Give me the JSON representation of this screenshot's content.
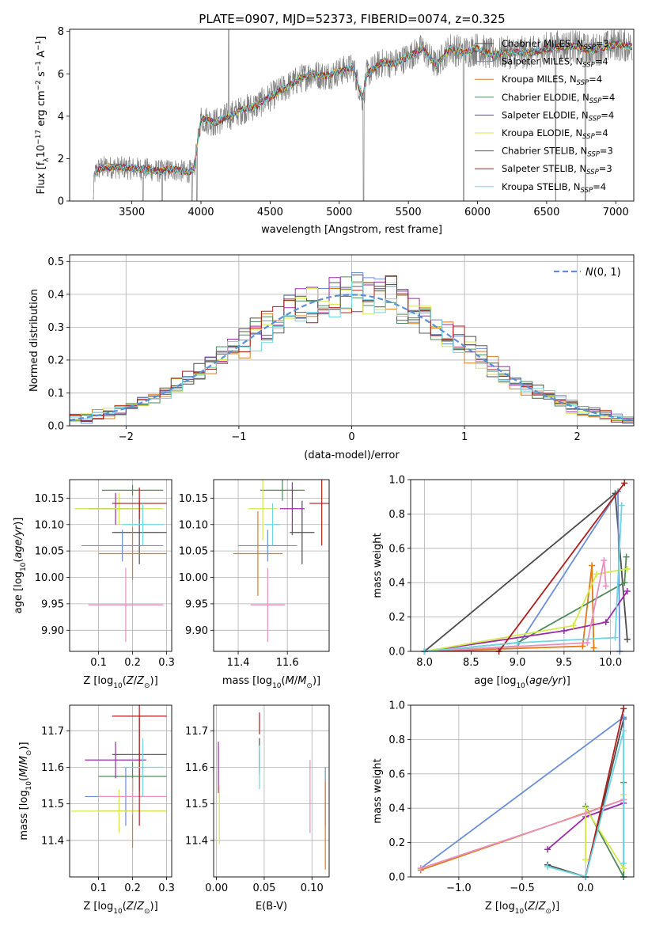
{
  "title": "PLATE=0907, MJD=52373, FIBERID=0074, z=0.325",
  "series": [
    {
      "key": "chab_miles",
      "label": "Chabrier MILES, N",
      "sub": "SSP",
      "nssp": "=3",
      "color": "#4d4d4d"
    },
    {
      "key": "salp_miles",
      "label": "Salpeter MILES, N",
      "sub": "SSP",
      "nssp": "=4",
      "color": "#6b8fd4"
    },
    {
      "key": "krou_miles",
      "label": "Kroupa MILES, N",
      "sub": "SSP",
      "nssp": "=4",
      "color": "#e07b1a"
    },
    {
      "key": "chab_elodie",
      "label": "Chabrier ELODIE, N",
      "sub": "SSP",
      "nssp": "=4",
      "color": "#4e8a5a"
    },
    {
      "key": "salp_elodie",
      "label": "Salpeter ELODIE, N",
      "sub": "SSP",
      "nssp": "=4",
      "color": "#9b2aa8"
    },
    {
      "key": "krou_elodie",
      "label": "Kroupa ELODIE, N",
      "sub": "SSP",
      "nssp": "=4",
      "color": "#d4e84a"
    },
    {
      "key": "chab_stelib",
      "label": "Chabrier STELIB, N",
      "sub": "SSP",
      "nssp": "=3",
      "color": "#5a5a5a"
    },
    {
      "key": "salp_stelib",
      "label": "Salpeter STELIB, N",
      "sub": "SSP",
      "nssp": "=3",
      "color": "#b01d1d"
    },
    {
      "key": "krou_stelib",
      "label": "Kroupa STELIB, N",
      "sub": "SSP",
      "nssp": "=4",
      "color": "#6fd6e0"
    }
  ],
  "chart_data": [
    {
      "id": "spectrum",
      "type": "line",
      "xlabel": "wavelength [Angstrom, rest frame]",
      "ylabel": "Flux [f_λ 10^-17 erg cm^-2 s^-1 A^-1]",
      "xlim": [
        3050,
        7130
      ],
      "ylim": [
        0,
        8.1
      ],
      "xticks": [
        3500,
        4000,
        4500,
        5000,
        5500,
        6000,
        6500,
        7000
      ],
      "yticks": [
        0,
        2,
        4,
        6,
        8
      ],
      "data_range": [
        3220,
        7120
      ],
      "data_color": "#808080",
      "model_anchor_x": [
        3220,
        3230,
        3250,
        3300,
        3500,
        3600,
        3700,
        3800,
        3900,
        3950,
        4000,
        4100,
        4200,
        4300,
        4400,
        4500,
        4600,
        4700,
        4800,
        4900,
        5000,
        5100,
        5170,
        5200,
        5300,
        5400,
        5500,
        5600,
        5700,
        5800,
        5900,
        6000,
        6100,
        6200,
        6300,
        6400,
        6500,
        6600,
        6700,
        6800,
        6900,
        7000,
        7100
      ],
      "model_anchor_y": [
        0.0,
        1.2,
        1.5,
        1.6,
        1.55,
        1.5,
        1.4,
        1.5,
        1.35,
        1.5,
        3.9,
        3.7,
        4.0,
        4.3,
        4.5,
        4.9,
        5.3,
        5.7,
        6.0,
        5.9,
        6.1,
        6.3,
        4.8,
        6.0,
        6.5,
        6.5,
        6.8,
        7.2,
        6.4,
        7.2,
        7.0,
        7.2,
        6.9,
        7.0,
        7.0,
        7.0,
        7.2,
        7.3,
        7.3,
        7.1,
        7.2,
        7.4,
        7.3
      ],
      "dips_x": [
        3580,
        3720,
        3935,
        3970,
        4200,
        5175,
        5900,
        6565,
        6780
      ],
      "legend_position": "upper right"
    },
    {
      "id": "residuals",
      "type": "histogram",
      "xlabel": "(data-model)/error",
      "ylabel": "Normed distribution",
      "xlim": [
        -2.5,
        2.5
      ],
      "ylim": [
        0,
        0.52
      ],
      "xticks": [
        -2,
        -1,
        0,
        1,
        2
      ],
      "yticks": [
        0.0,
        0.1,
        0.2,
        0.3,
        0.4,
        0.5
      ],
      "bin_width": 0.1,
      "grid": true,
      "reference_curve": {
        "name": "N(0,1)",
        "mean": 0,
        "sigma": 1,
        "color": "#5b8fd9",
        "style": "dashed"
      },
      "legend_position": "upper right"
    },
    {
      "id": "age_vs_z",
      "type": "errorbar",
      "xlabel": "Z [log10(Z/Z_sun)]",
      "ylabel": "age  [log10(age/yr)]",
      "xlim": [
        0.015,
        0.315
      ],
      "ylim": [
        9.86,
        10.185
      ],
      "xticks": [
        0.1,
        0.2,
        0.3
      ],
      "yticks": [
        9.9,
        9.95,
        10.0,
        10.05,
        10.1,
        10.15
      ],
      "points": [
        {
          "color": "#4d4d4d",
          "x": 0.22,
          "xerr": 0.08,
          "y": 10.085,
          "yerr": 0.06
        },
        {
          "color": "#6b8fd4",
          "x": 0.17,
          "xerr": 0.12,
          "y": 10.06,
          "yerr": 0.03
        },
        {
          "color": "#e07b1a",
          "x": 0.2,
          "xerr": 0.1,
          "y": 10.045,
          "yerr": 0.05
        },
        {
          "color": "#4e8a5a",
          "x": 0.2,
          "xerr": 0.09,
          "y": 10.165,
          "yerr": 0.01
        },
        {
          "color": "#9b2aa8",
          "x": 0.15,
          "xerr": 0.08,
          "y": 10.13,
          "yerr": 0.03
        },
        {
          "color": "#d4e84a",
          "x": 0.16,
          "xerr": 0.13,
          "y": 10.13,
          "yerr": 0.03
        },
        {
          "color": "#ea8fbf",
          "x": 0.18,
          "xerr": 0.11,
          "y": 9.948,
          "yerr": 0.07
        },
        {
          "color": "#b01d1d",
          "x": 0.22,
          "xerr": 0.08,
          "y": 10.14,
          "yerr": 0.03
        },
        {
          "color": "#6fd6e0",
          "x": 0.23,
          "xerr": 0.06,
          "y": 10.1,
          "yerr": 0.04
        }
      ]
    },
    {
      "id": "age_vs_mass",
      "type": "errorbar",
      "xlabel": "mass [log10(M/M_sun)]",
      "ylabel": "",
      "xlim": [
        11.3,
        11.77
      ],
      "ylim": [
        9.86,
        10.185
      ],
      "xticks": [
        11.4,
        11.6
      ],
      "yticks": [
        9.9,
        9.95,
        10.0,
        10.05,
        10.1,
        10.15
      ],
      "points": [
        {
          "color": "#4d4d4d",
          "x": 11.66,
          "xerr": 0.05,
          "y": 10.085,
          "yerr": 0.06
        },
        {
          "color": "#6b8fd4",
          "x": 11.52,
          "xerr": 0.12,
          "y": 10.06,
          "yerr": 0.03
        },
        {
          "color": "#e07b1a",
          "x": 11.48,
          "xerr": 0.1,
          "y": 10.045,
          "yerr": 0.08
        },
        {
          "color": "#4e8a5a",
          "x": 11.58,
          "xerr": 0.09,
          "y": 10.165,
          "yerr": 0.02
        },
        {
          "color": "#9b2aa8",
          "x": 11.62,
          "xerr": 0.05,
          "y": 10.13,
          "yerr": 0.05
        },
        {
          "color": "#d4e84a",
          "x": 11.5,
          "xerr": 0.06,
          "y": 10.13,
          "yerr": 0.06
        },
        {
          "color": "#ea8fbf",
          "x": 11.52,
          "xerr": 0.07,
          "y": 9.948,
          "yerr": 0.07
        },
        {
          "color": "#b01d1d",
          "x": 11.74,
          "xerr": 0.05,
          "y": 10.14,
          "yerr": 0.08
        },
        {
          "color": "#6fd6e0",
          "x": 11.54,
          "xerr": 0.03,
          "y": 10.1,
          "yerr": 0.04
        }
      ]
    },
    {
      "id": "weight_vs_age",
      "type": "line",
      "xlabel": "age  [log10(age/yr)]",
      "ylabel": "mass weight",
      "xlim": [
        7.85,
        10.25
      ],
      "ylim": [
        0,
        1.0
      ],
      "xticks": [
        8.0,
        8.5,
        9.0,
        9.5,
        10.0
      ],
      "yticks": [
        0.0,
        0.2,
        0.4,
        0.6,
        0.8,
        1.0
      ],
      "grid": true,
      "lines": [
        {
          "color": "#4d4d4d",
          "x": [
            8.0,
            10.05,
            10.18
          ],
          "y": [
            0.0,
            0.92,
            0.07
          ]
        },
        {
          "color": "#6b8fd4",
          "x": [
            8.0,
            9.0,
            10.08,
            10.1
          ],
          "y": [
            0.0,
            0.03,
            0.93,
            0.0
          ]
        },
        {
          "color": "#e07b1a",
          "x": [
            8.0,
            9.7,
            9.8,
            9.82
          ],
          "y": [
            0.0,
            0.03,
            0.5,
            0.02
          ]
        },
        {
          "color": "#4e8a5a",
          "x": [
            8.0,
            9.0,
            10.15,
            10.17
          ],
          "y": [
            0.0,
            0.05,
            0.4,
            0.55
          ]
        },
        {
          "color": "#9b2aa8",
          "x": [
            8.0,
            9.5,
            9.95,
            10.18
          ],
          "y": [
            0.0,
            0.12,
            0.17,
            0.35
          ]
        },
        {
          "color": "#d4e84a",
          "x": [
            8.0,
            9.6,
            9.85,
            10.18
          ],
          "y": [
            0.0,
            0.15,
            0.45,
            0.48
          ]
        },
        {
          "color": "#ea8fbf",
          "x": [
            8.0,
            9.75,
            9.93,
            9.95
          ],
          "y": [
            0.0,
            0.05,
            0.53,
            0.38
          ]
        },
        {
          "color": "#b01d1d",
          "x": [
            8.0,
            8.8,
            10.15
          ],
          "y": [
            0.0,
            0.0,
            0.98
          ]
        },
        {
          "color": "#6fd6e0",
          "x": [
            8.0,
            9.0,
            10.05,
            10.12
          ],
          "y": [
            0.0,
            0.05,
            0.08,
            0.85
          ]
        }
      ]
    },
    {
      "id": "mass_vs_z",
      "type": "errorbar",
      "xlabel": "Z [log10(Z/Z_sun)]",
      "ylabel": "mass [log10(M/M_sun)]",
      "xlim": [
        0.015,
        0.315
      ],
      "ylim": [
        11.3,
        11.77
      ],
      "xticks": [
        0.1,
        0.2,
        0.3
      ],
      "yticks": [
        11.4,
        11.5,
        11.6,
        11.7
      ],
      "points": [
        {
          "color": "#4d4d4d",
          "x": 0.22,
          "xerr": 0.08,
          "y": 11.635,
          "yerr": 0.1
        },
        {
          "color": "#6b8fd4",
          "x": 0.18,
          "xerr": 0.12,
          "y": 11.52,
          "yerr": 0.08
        },
        {
          "color": "#e07b1a",
          "x": 0.2,
          "xerr": 0.1,
          "y": 11.48,
          "yerr": 0.1
        },
        {
          "color": "#4e8a5a",
          "x": 0.2,
          "xerr": 0.1,
          "y": 11.575,
          "yerr": 0.04
        },
        {
          "color": "#9b2aa8",
          "x": 0.15,
          "xerr": 0.09,
          "y": 11.62,
          "yerr": 0.05
        },
        {
          "color": "#d4e84a",
          "x": 0.16,
          "xerr": 0.14,
          "y": 11.48,
          "yerr": 0.06
        },
        {
          "color": "#ea8fbf",
          "x": 0.2,
          "xerr": 0.1,
          "y": 11.52,
          "yerr": 0.05
        },
        {
          "color": "#b01d1d",
          "x": 0.22,
          "xerr": 0.08,
          "y": 11.74,
          "yerr": 0.3
        },
        {
          "color": "#6fd6e0",
          "x": 0.23,
          "xerr": 0.06,
          "y": 11.6,
          "yerr": 0.08
        }
      ]
    },
    {
      "id": "mass_vs_ebv",
      "type": "errorbar",
      "xlabel": "E(B-V)",
      "ylabel": "",
      "xlim": [
        -0.003,
        0.118
      ],
      "ylim": [
        11.3,
        11.77
      ],
      "xticks": [
        0.0,
        0.05,
        0.1
      ],
      "yticks": [
        11.4,
        11.5,
        11.6,
        11.7
      ],
      "points": [
        {
          "color": "#4d4d4d",
          "x": 0.045,
          "xerr": 0,
          "y": 11.63,
          "yerr": 0.05
        },
        {
          "color": "#6b8fd4",
          "x": 0.114,
          "xerr": 0,
          "y": 11.52,
          "yerr": 0.08
        },
        {
          "color": "#e07b1a",
          "x": 0.114,
          "xerr": 0,
          "y": 11.44,
          "yerr": 0.12
        },
        {
          "color": "#4e8a5a",
          "x": 0.045,
          "xerr": 0,
          "y": 11.62,
          "yerr": 0.03
        },
        {
          "color": "#9b2aa8",
          "x": 0.002,
          "xerr": 0,
          "y": 11.6,
          "yerr": 0.07
        },
        {
          "color": "#d4e84a",
          "x": 0.003,
          "xerr": 0,
          "y": 11.47,
          "yerr": 0.08
        },
        {
          "color": "#ea8fbf",
          "x": 0.098,
          "xerr": 0,
          "y": 11.52,
          "yerr": 0.1
        },
        {
          "color": "#b01d1d",
          "x": 0.045,
          "xerr": 0,
          "y": 11.72,
          "yerr": 0.03
        },
        {
          "color": "#6fd6e0",
          "x": 0.045,
          "xerr": 0,
          "y": 11.6,
          "yerr": 0.06
        }
      ]
    },
    {
      "id": "weight_vs_z",
      "type": "line",
      "xlabel": "Z [log10(Z/Z_sun)]",
      "ylabel": "mass weight",
      "xlim": [
        -1.38,
        0.38
      ],
      "ylim": [
        0,
        1.0
      ],
      "xticks": [
        -1.0,
        -0.5,
        0.0
      ],
      "yticks": [
        0.0,
        0.2,
        0.4,
        0.6,
        0.8,
        1.0
      ],
      "grid": true,
      "lines": [
        {
          "color": "#4d4d4d",
          "x": [
            -0.3,
            0.0,
            0.3
          ],
          "y": [
            0.07,
            0.0,
            0.92
          ]
        },
        {
          "color": "#6b8fd4",
          "x": [
            -1.3,
            0.3,
            0.3
          ],
          "y": [
            0.05,
            0.93,
            0.0
          ]
        },
        {
          "color": "#e07b1a",
          "x": [
            -1.3,
            0.3
          ],
          "y": [
            0.04,
            0.45
          ]
        },
        {
          "color": "#4e8a5a",
          "x": [
            0.0,
            0.3,
            0.3
          ],
          "y": [
            0.41,
            0.0,
            0.55
          ]
        },
        {
          "color": "#9b2aa8",
          "x": [
            -0.3,
            0.0,
            0.3
          ],
          "y": [
            0.16,
            0.35,
            0.43
          ]
        },
        {
          "color": "#d4e84a",
          "x": [
            0.0,
            0.0,
            0.3,
            0.3
          ],
          "y": [
            0.1,
            0.4,
            0.05,
            0.48
          ]
        },
        {
          "color": "#ea8fbf",
          "x": [
            -1.3,
            0.0,
            0.3
          ],
          "y": [
            0.05,
            0.37,
            0.45
          ]
        },
        {
          "color": "#b01d1d",
          "x": [
            0.0,
            0.3
          ],
          "y": [
            0.0,
            0.98
          ]
        },
        {
          "color": "#6fd6e0",
          "x": [
            -0.3,
            0.0,
            0.3,
            0.3
          ],
          "y": [
            0.06,
            0.0,
            0.85,
            0.08
          ]
        }
      ]
    }
  ]
}
